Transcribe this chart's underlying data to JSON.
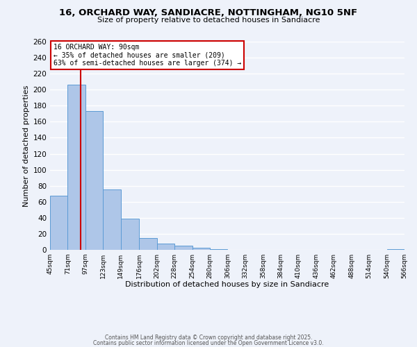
{
  "title": "16, ORCHARD WAY, SANDIACRE, NOTTINGHAM, NG10 5NF",
  "subtitle": "Size of property relative to detached houses in Sandiacre",
  "xlabel": "Distribution of detached houses by size in Sandiacre",
  "ylabel": "Number of detached properties",
  "bar_values": [
    68,
    206,
    173,
    75,
    39,
    15,
    8,
    5,
    3,
    1,
    0,
    0,
    0,
    0,
    0,
    0,
    0,
    0,
    0,
    1
  ],
  "bin_edges": [
    45,
    71,
    97,
    123,
    149,
    176,
    202,
    228,
    254,
    280,
    306,
    332,
    358,
    384,
    410,
    436,
    462,
    488,
    514,
    540,
    566
  ],
  "tick_labels": [
    "45sqm",
    "71sqm",
    "97sqm",
    "123sqm",
    "149sqm",
    "176sqm",
    "202sqm",
    "228sqm",
    "254sqm",
    "280sqm",
    "306sqm",
    "332sqm",
    "358sqm",
    "384sqm",
    "410sqm",
    "436sqm",
    "462sqm",
    "488sqm",
    "514sqm",
    "540sqm",
    "566sqm"
  ],
  "bar_color": "#aec6e8",
  "bar_edge_color": "#5b9bd5",
  "vline_x": 90,
  "vline_color": "#cc0000",
  "ylim": [
    0,
    260
  ],
  "yticks": [
    0,
    20,
    40,
    60,
    80,
    100,
    120,
    140,
    160,
    180,
    200,
    220,
    240,
    260
  ],
  "annotation_title": "16 ORCHARD WAY: 90sqm",
  "annotation_line1": "← 35% of detached houses are smaller (209)",
  "annotation_line2": "63% of semi-detached houses are larger (374) →",
  "background_color": "#eef2fa",
  "grid_color": "#ffffff",
  "footer_line1": "Contains HM Land Registry data © Crown copyright and database right 2025.",
  "footer_line2": "Contains public sector information licensed under the Open Government Licence v3.0."
}
